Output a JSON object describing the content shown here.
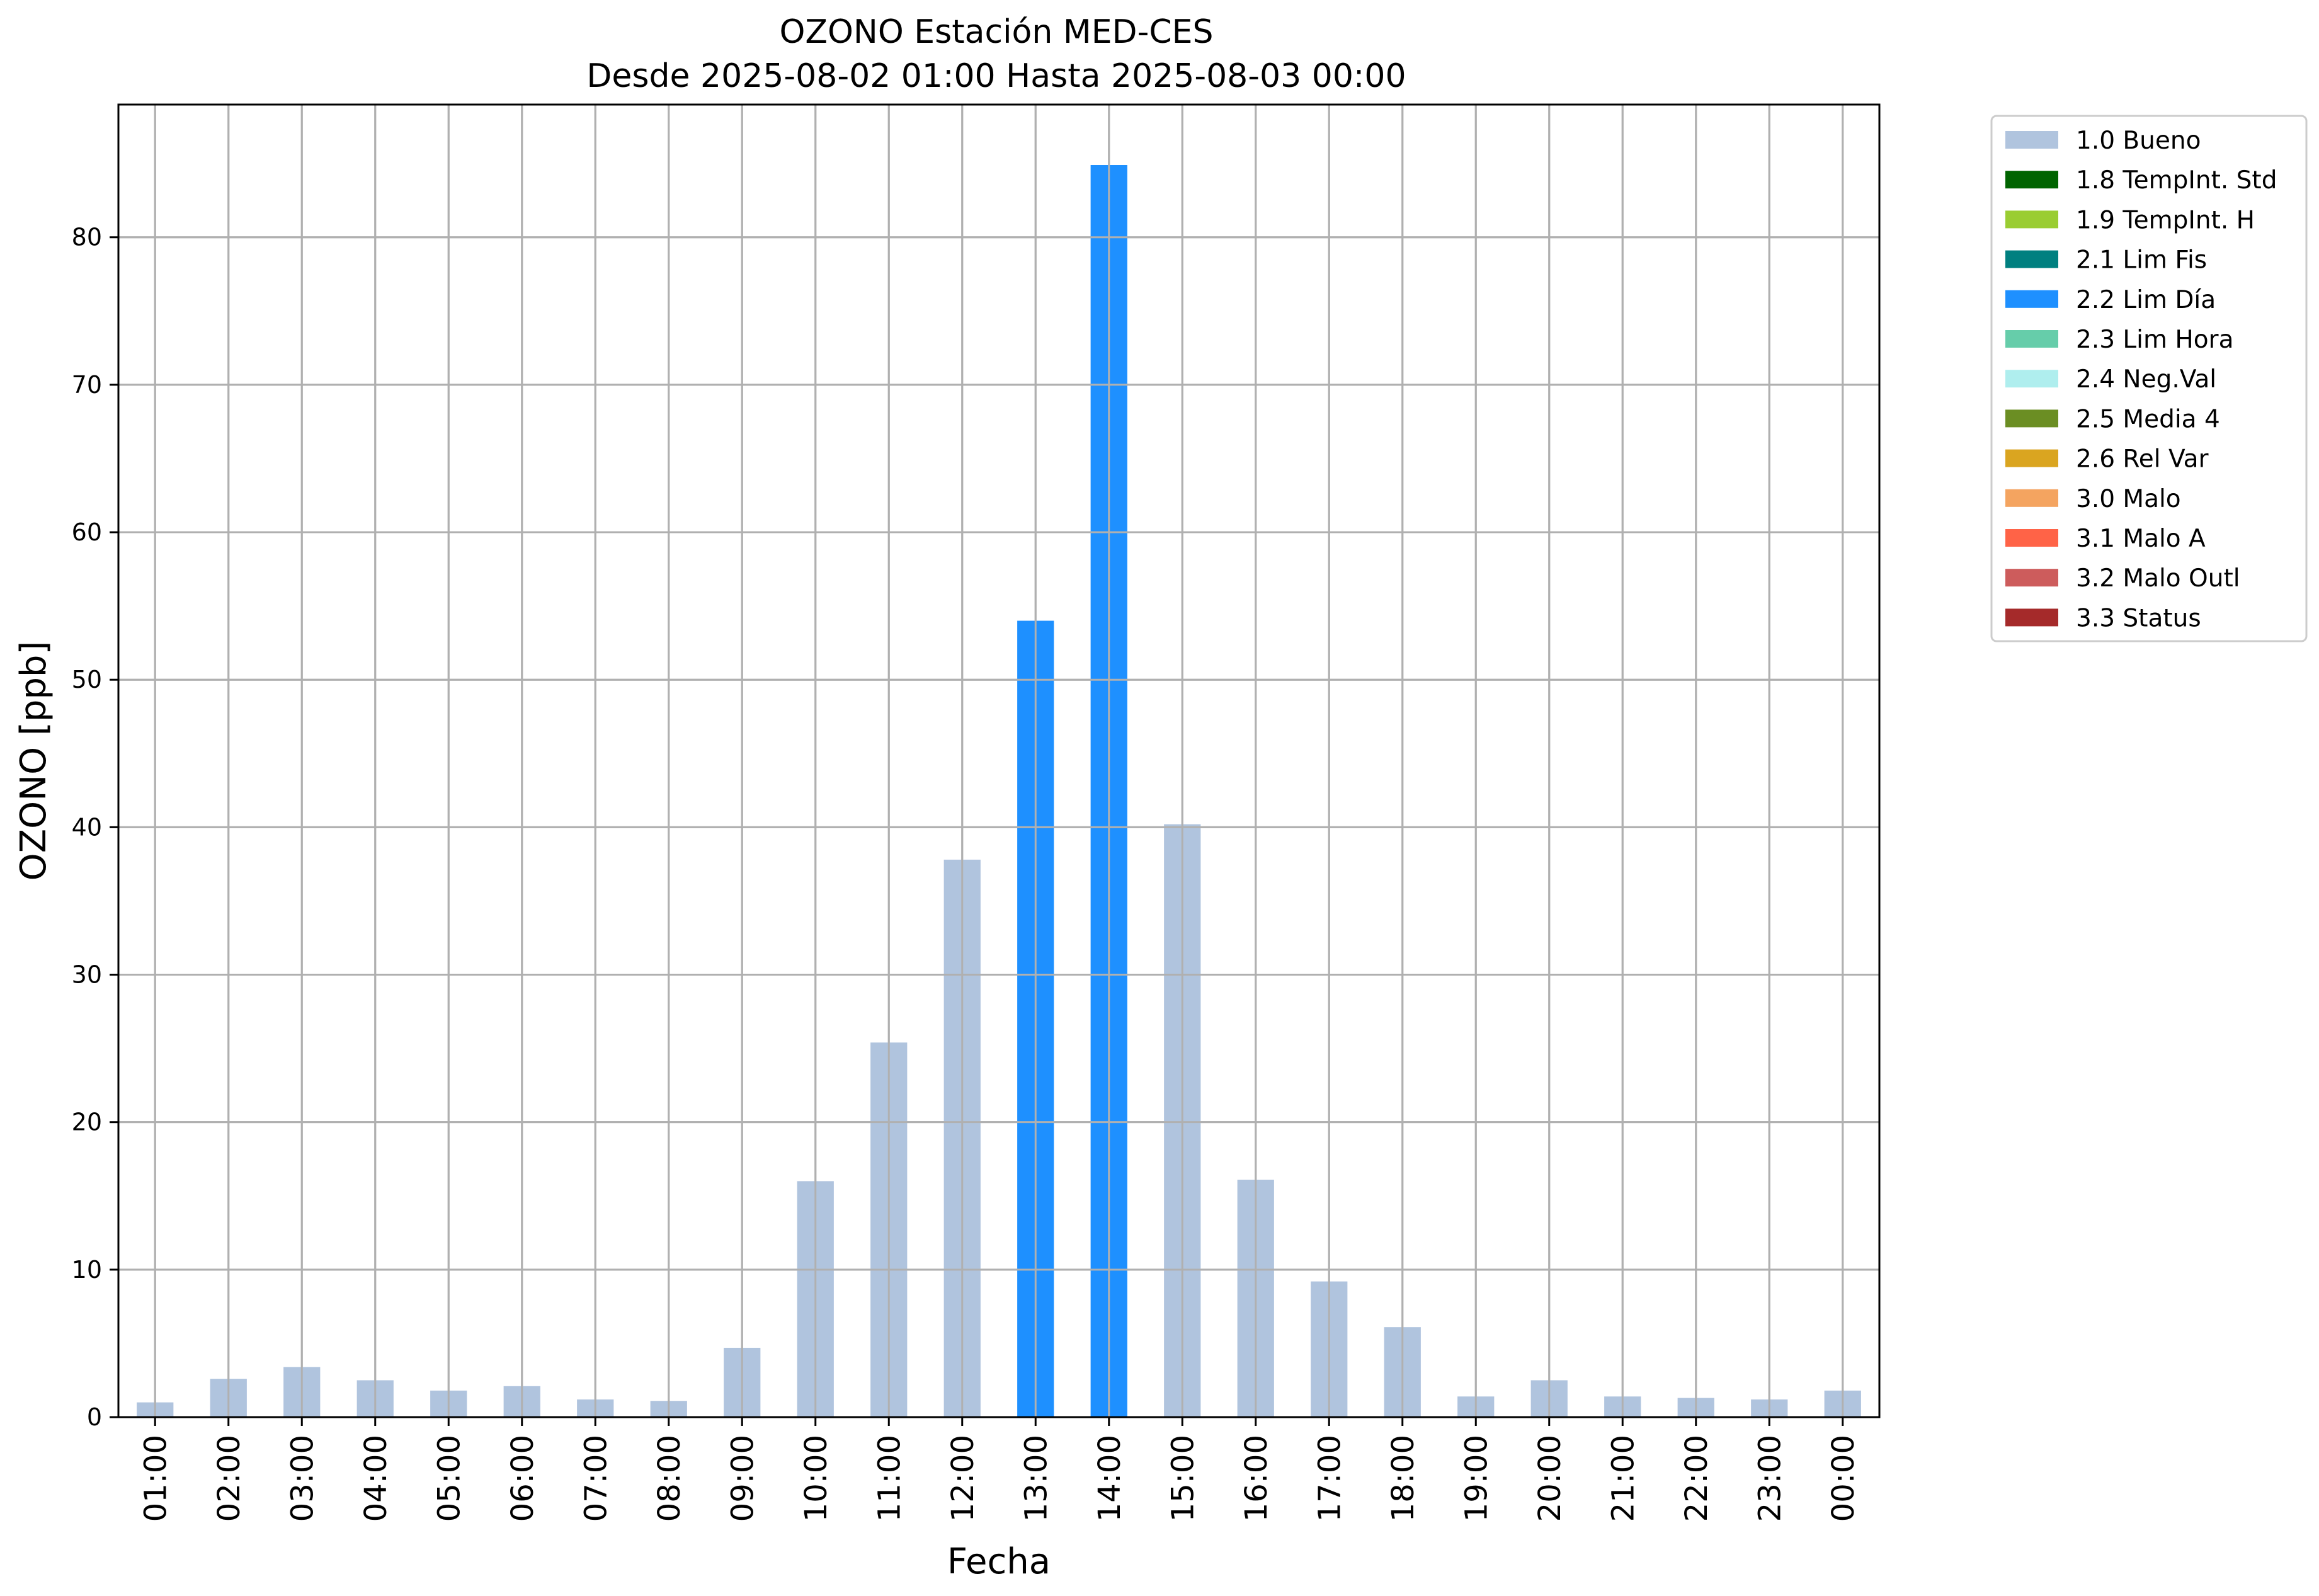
{
  "chart_data": {
    "type": "bar",
    "title": "OZONO Estación MED-CES",
    "subtitle": "Desde 2025-08-02 01:00 Hasta 2025-08-03 00:00",
    "xlabel": "Fecha",
    "ylabel": "OZONO [ppb]",
    "ylim": [
      0,
      89
    ],
    "yticks": [
      0,
      10,
      20,
      30,
      40,
      50,
      60,
      70,
      80
    ],
    "grid": true,
    "legend_position": "outside-top-right",
    "categories": [
      "01:00",
      "02:00",
      "03:00",
      "04:00",
      "05:00",
      "06:00",
      "07:00",
      "08:00",
      "09:00",
      "10:00",
      "11:00",
      "12:00",
      "13:00",
      "14:00",
      "15:00",
      "16:00",
      "17:00",
      "18:00",
      "19:00",
      "20:00",
      "21:00",
      "22:00",
      "23:00",
      "00:00"
    ],
    "values": [
      1.0,
      2.6,
      3.4,
      2.5,
      1.8,
      2.1,
      1.2,
      1.1,
      4.7,
      16.0,
      25.4,
      37.8,
      54.0,
      84.9,
      40.2,
      16.1,
      9.2,
      6.1,
      1.4,
      2.5,
      1.4,
      1.3,
      1.2,
      1.8
    ],
    "flags": [
      "1.0 Bueno",
      "1.0 Bueno",
      "1.0 Bueno",
      "1.0 Bueno",
      "1.0 Bueno",
      "1.0 Bueno",
      "1.0 Bueno",
      "1.0 Bueno",
      "1.0 Bueno",
      "1.0 Bueno",
      "1.0 Bueno",
      "1.0 Bueno",
      "2.2 Lim Día",
      "2.2 Lim Día",
      "1.0 Bueno",
      "1.0 Bueno",
      "1.0 Bueno",
      "1.0 Bueno",
      "1.0 Bueno",
      "1.0 Bueno",
      "1.0 Bueno",
      "1.0 Bueno",
      "1.0 Bueno",
      "1.0 Bueno"
    ],
    "legend": [
      {
        "label": "1.0 Bueno",
        "color": "#b0c4de"
      },
      {
        "label": "1.8 TempInt. Std",
        "color": "#006400"
      },
      {
        "label": "1.9 TempInt. H",
        "color": "#9acd32"
      },
      {
        "label": "2.1 Lim Fis",
        "color": "#008080"
      },
      {
        "label": "2.2 Lim Día",
        "color": "#1e90ff"
      },
      {
        "label": "2.3 Lim Hora",
        "color": "#66cdaa"
      },
      {
        "label": "2.4 Neg.Val",
        "color": "#afeeee"
      },
      {
        "label": "2.5 Media 4",
        "color": "#6b8e23"
      },
      {
        "label": "2.6 Rel Var",
        "color": "#daa520"
      },
      {
        "label": "3.0 Malo",
        "color": "#f4a460"
      },
      {
        "label": "3.1 Malo A",
        "color": "#ff6347"
      },
      {
        "label": "3.2 Malo Outl",
        "color": "#cd5c5c"
      },
      {
        "label": "3.3 Status",
        "color": "#a52a2a"
      }
    ]
  }
}
